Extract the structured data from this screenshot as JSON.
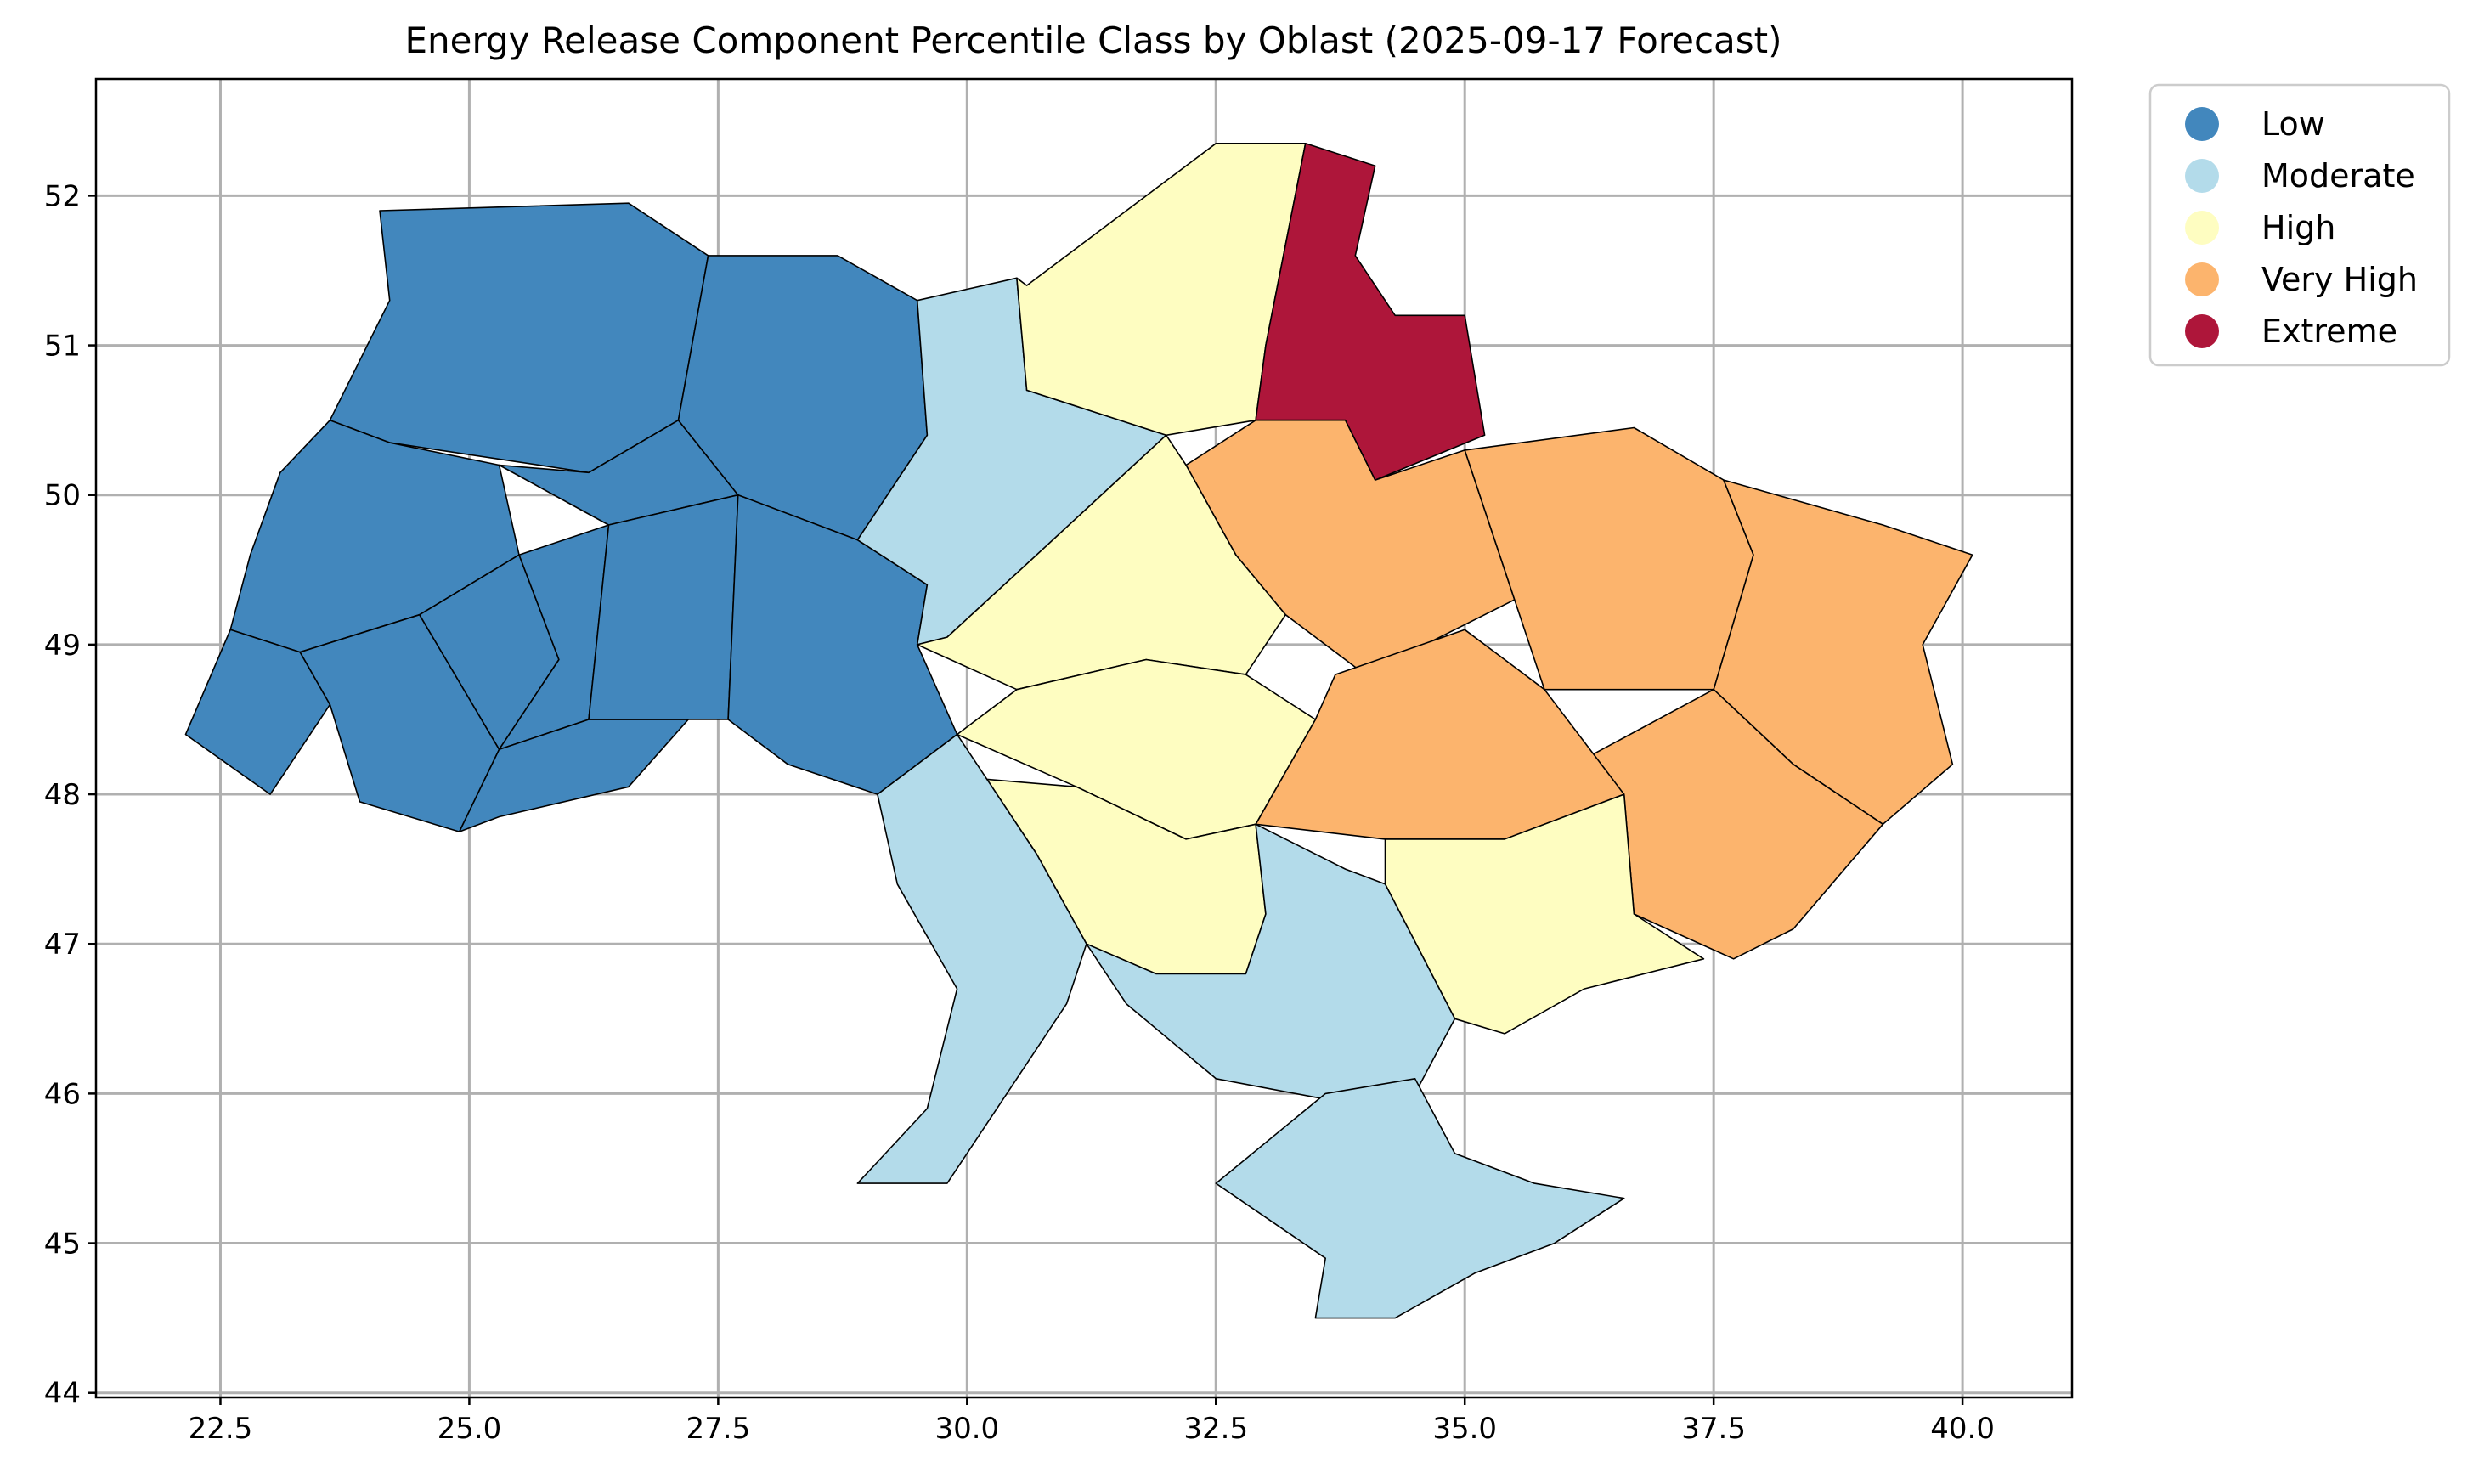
{
  "chart_data": {
    "type": "choropleth",
    "title": "Energy Release Component Percentile Class by Oblast (2025-09-17 Forecast)",
    "xlim": [
      21.25,
      41.1
    ],
    "ylim": [
      43.97,
      52.78
    ],
    "x_ticks": [
      22.5,
      25.0,
      27.5,
      30.0,
      32.5,
      35.0,
      37.5,
      40.0
    ],
    "x_tick_labels": [
      "22.5",
      "25.0",
      "27.5",
      "30.0",
      "32.5",
      "35.0",
      "37.5",
      "40.0"
    ],
    "y_ticks": [
      44,
      45,
      46,
      47,
      48,
      49,
      50,
      51,
      52
    ],
    "y_tick_labels": [
      "44",
      "45",
      "46",
      "47",
      "48",
      "49",
      "50",
      "51",
      "52"
    ],
    "grid": true,
    "legend_position": "outside-top-right",
    "classes": [
      {
        "label": "Low",
        "color": "#4287bd"
      },
      {
        "label": "Moderate",
        "color": "#b3dbea"
      },
      {
        "label": "High",
        "color": "#fefdc1"
      },
      {
        "label": "Very High",
        "color": "#fcb46d"
      },
      {
        "label": "Extreme",
        "color": "#ae163a"
      }
    ],
    "regions": [
      {
        "cls": "Low",
        "poly": [
          [
            24.1,
            51.9
          ],
          [
            26.6,
            51.95
          ],
          [
            27.4,
            51.6
          ],
          [
            27.1,
            50.5
          ],
          [
            26.2,
            50.15
          ],
          [
            24.2,
            50.35
          ],
          [
            23.6,
            50.5
          ],
          [
            24.2,
            51.3
          ]
        ]
      },
      {
        "cls": "Low",
        "poly": [
          [
            23.6,
            50.5
          ],
          [
            24.2,
            50.35
          ],
          [
            25.3,
            50.2
          ],
          [
            25.5,
            49.6
          ],
          [
            24.5,
            49.2
          ],
          [
            23.3,
            48.95
          ],
          [
            22.6,
            49.1
          ],
          [
            22.8,
            49.6
          ],
          [
            23.1,
            50.15
          ]
        ]
      },
      {
        "cls": "Low",
        "poly": [
          [
            22.6,
            49.1
          ],
          [
            23.3,
            48.95
          ],
          [
            23.6,
            48.6
          ],
          [
            23.0,
            48.0
          ],
          [
            22.15,
            48.4
          ]
        ]
      },
      {
        "cls": "Low",
        "poly": [
          [
            23.3,
            48.95
          ],
          [
            24.5,
            49.2
          ],
          [
            25.3,
            48.3
          ],
          [
            24.9,
            47.75
          ],
          [
            23.9,
            47.95
          ],
          [
            23.6,
            48.6
          ]
        ]
      },
      {
        "cls": "Low",
        "poly": [
          [
            24.5,
            49.2
          ],
          [
            25.5,
            49.6
          ],
          [
            25.9,
            48.9
          ],
          [
            25.3,
            48.3
          ]
        ]
      },
      {
        "cls": "Low",
        "poly": [
          [
            25.5,
            49.6
          ],
          [
            26.4,
            49.8
          ],
          [
            26.2,
            48.5
          ],
          [
            25.3,
            48.3
          ],
          [
            25.9,
            48.9
          ]
        ]
      },
      {
        "cls": "Low",
        "poly": [
          [
            25.3,
            48.3
          ],
          [
            26.2,
            48.5
          ],
          [
            27.2,
            48.5
          ],
          [
            26.6,
            48.05
          ],
          [
            25.3,
            47.85
          ],
          [
            24.9,
            47.75
          ]
        ]
      },
      {
        "cls": "Low",
        "poly": [
          [
            26.2,
            50.15
          ],
          [
            27.1,
            50.5
          ],
          [
            27.7,
            50.0
          ],
          [
            26.4,
            49.8
          ],
          [
            25.3,
            50.2
          ]
        ]
      },
      {
        "cls": "Low",
        "poly": [
          [
            26.4,
            49.8
          ],
          [
            27.7,
            50.0
          ],
          [
            27.6,
            48.5
          ],
          [
            27.2,
            48.5
          ],
          [
            26.2,
            48.5
          ]
        ]
      },
      {
        "cls": "Low",
        "poly": [
          [
            27.4,
            51.6
          ],
          [
            28.7,
            51.6
          ],
          [
            29.5,
            51.3
          ],
          [
            29.6,
            50.4
          ],
          [
            28.9,
            49.7
          ],
          [
            27.7,
            50.0
          ],
          [
            27.1,
            50.5
          ]
        ]
      },
      {
        "cls": "Low",
        "poly": [
          [
            27.7,
            50.0
          ],
          [
            28.9,
            49.7
          ],
          [
            29.6,
            49.4
          ],
          [
            29.5,
            49.0
          ],
          [
            29.9,
            48.4
          ],
          [
            29.1,
            48.0
          ],
          [
            28.2,
            48.2
          ],
          [
            27.6,
            48.5
          ]
        ]
      },
      {
        "cls": "Moderate",
        "poly": [
          [
            29.5,
            51.3
          ],
          [
            30.5,
            51.45
          ],
          [
            30.6,
            50.7
          ],
          [
            32.0,
            50.4
          ],
          [
            30.7,
            49.6
          ],
          [
            29.8,
            49.05
          ],
          [
            29.5,
            49.0
          ],
          [
            29.6,
            49.4
          ],
          [
            28.9,
            49.7
          ],
          [
            29.6,
            50.4
          ]
        ]
      },
      {
        "cls": "High",
        "poly": [
          [
            30.6,
            51.4
          ],
          [
            32.5,
            52.35
          ],
          [
            33.4,
            52.35
          ],
          [
            33.0,
            51.0
          ],
          [
            32.9,
            50.5
          ],
          [
            32.0,
            50.4
          ],
          [
            30.6,
            50.7
          ],
          [
            30.5,
            51.45
          ]
        ]
      },
      {
        "cls": "Extreme",
        "poly": [
          [
            33.4,
            52.35
          ],
          [
            34.1,
            52.2
          ],
          [
            33.9,
            51.6
          ],
          [
            34.3,
            51.2
          ],
          [
            35.0,
            51.2
          ],
          [
            35.2,
            50.4
          ],
          [
            34.1,
            50.1
          ],
          [
            33.8,
            50.5
          ],
          [
            32.9,
            50.5
          ],
          [
            33.0,
            51.0
          ]
        ]
      },
      {
        "cls": "Very High",
        "poly": [
          [
            32.9,
            50.5
          ],
          [
            33.8,
            50.5
          ],
          [
            34.1,
            50.1
          ],
          [
            35.0,
            50.3
          ],
          [
            35.5,
            49.3
          ],
          [
            34.0,
            48.8
          ],
          [
            33.2,
            49.2
          ],
          [
            32.7,
            49.6
          ],
          [
            32.2,
            50.2
          ]
        ]
      },
      {
        "cls": "Very High",
        "poly": [
          [
            35.0,
            50.3
          ],
          [
            36.7,
            50.45
          ],
          [
            37.6,
            50.1
          ],
          [
            37.9,
            49.6
          ],
          [
            37.5,
            48.7
          ],
          [
            35.8,
            48.7
          ],
          [
            35.5,
            49.3
          ]
        ]
      },
      {
        "cls": "Very High",
        "poly": [
          [
            37.6,
            50.1
          ],
          [
            39.2,
            49.8
          ],
          [
            40.1,
            49.6
          ],
          [
            39.6,
            49.0
          ],
          [
            39.9,
            48.2
          ],
          [
            39.2,
            47.8
          ],
          [
            38.3,
            48.2
          ],
          [
            37.5,
            48.7
          ],
          [
            37.9,
            49.6
          ]
        ]
      },
      {
        "cls": "Very High",
        "poly": [
          [
            37.5,
            48.7
          ],
          [
            38.3,
            48.2
          ],
          [
            39.2,
            47.8
          ],
          [
            38.3,
            47.1
          ],
          [
            37.7,
            46.9
          ],
          [
            36.7,
            47.2
          ],
          [
            36.6,
            48.0
          ],
          [
            36.1,
            48.2
          ]
        ]
      },
      {
        "cls": "Very High",
        "poly": [
          [
            33.7,
            48.8
          ],
          [
            35.0,
            49.1
          ],
          [
            35.8,
            48.7
          ],
          [
            36.6,
            48.0
          ],
          [
            35.4,
            47.7
          ],
          [
            34.2,
            47.7
          ],
          [
            32.9,
            47.8
          ],
          [
            33.5,
            48.5
          ]
        ]
      },
      {
        "cls": "High",
        "poly": [
          [
            32.0,
            50.4
          ],
          [
            32.2,
            50.2
          ],
          [
            32.7,
            49.6
          ],
          [
            33.2,
            49.2
          ],
          [
            32.8,
            48.8
          ],
          [
            31.8,
            48.9
          ],
          [
            30.5,
            48.7
          ],
          [
            29.5,
            49.0
          ],
          [
            29.8,
            49.05
          ],
          [
            30.7,
            49.6
          ]
        ]
      },
      {
        "cls": "High",
        "poly": [
          [
            30.5,
            48.7
          ],
          [
            31.8,
            48.9
          ],
          [
            32.8,
            48.8
          ],
          [
            33.5,
            48.5
          ],
          [
            32.9,
            47.8
          ],
          [
            32.2,
            47.7
          ],
          [
            31.1,
            48.05
          ],
          [
            29.9,
            48.4
          ]
        ]
      },
      {
        "cls": "High",
        "poly": [
          [
            30.2,
            48.1
          ],
          [
            31.1,
            48.05
          ],
          [
            32.2,
            47.7
          ],
          [
            32.9,
            47.8
          ],
          [
            33.0,
            47.2
          ],
          [
            32.8,
            46.8
          ],
          [
            31.9,
            46.8
          ],
          [
            31.2,
            47.0
          ],
          [
            30.7,
            47.6
          ]
        ]
      },
      {
        "cls": "High",
        "poly": [
          [
            34.2,
            47.7
          ],
          [
            35.4,
            47.7
          ],
          [
            36.6,
            48.0
          ],
          [
            36.7,
            47.2
          ],
          [
            37.4,
            46.9
          ],
          [
            36.2,
            46.7
          ],
          [
            35.4,
            46.4
          ],
          [
            34.9,
            46.5
          ],
          [
            34.2,
            47.4
          ]
        ]
      },
      {
        "cls": "Moderate",
        "poly": [
          [
            29.1,
            48.0
          ],
          [
            29.9,
            48.4
          ],
          [
            30.2,
            48.1
          ],
          [
            30.7,
            47.6
          ],
          [
            31.2,
            47.0
          ],
          [
            31.0,
            46.6
          ],
          [
            30.5,
            46.1
          ],
          [
            29.8,
            45.4
          ],
          [
            28.9,
            45.4
          ],
          [
            29.6,
            45.9
          ],
          [
            29.9,
            46.7
          ],
          [
            29.3,
            47.4
          ]
        ]
      },
      {
        "cls": "Moderate",
        "poly": [
          [
            31.2,
            47.0
          ],
          [
            31.9,
            46.8
          ],
          [
            32.8,
            46.8
          ],
          [
            33.0,
            47.2
          ],
          [
            32.9,
            47.8
          ],
          [
            33.8,
            47.5
          ],
          [
            34.2,
            47.4
          ],
          [
            34.9,
            46.5
          ],
          [
            34.5,
            46.0
          ],
          [
            33.7,
            45.95
          ],
          [
            32.5,
            46.1
          ],
          [
            31.6,
            46.6
          ]
        ]
      },
      {
        "cls": "Moderate",
        "poly": [
          [
            33.6,
            46.0
          ],
          [
            34.5,
            46.1
          ],
          [
            34.9,
            45.6
          ],
          [
            35.7,
            45.4
          ],
          [
            36.6,
            45.3
          ],
          [
            35.9,
            45.0
          ],
          [
            35.1,
            44.8
          ],
          [
            34.3,
            44.5
          ],
          [
            33.5,
            44.5
          ],
          [
            33.6,
            44.9
          ],
          [
            32.5,
            45.4
          ]
        ]
      }
    ]
  }
}
